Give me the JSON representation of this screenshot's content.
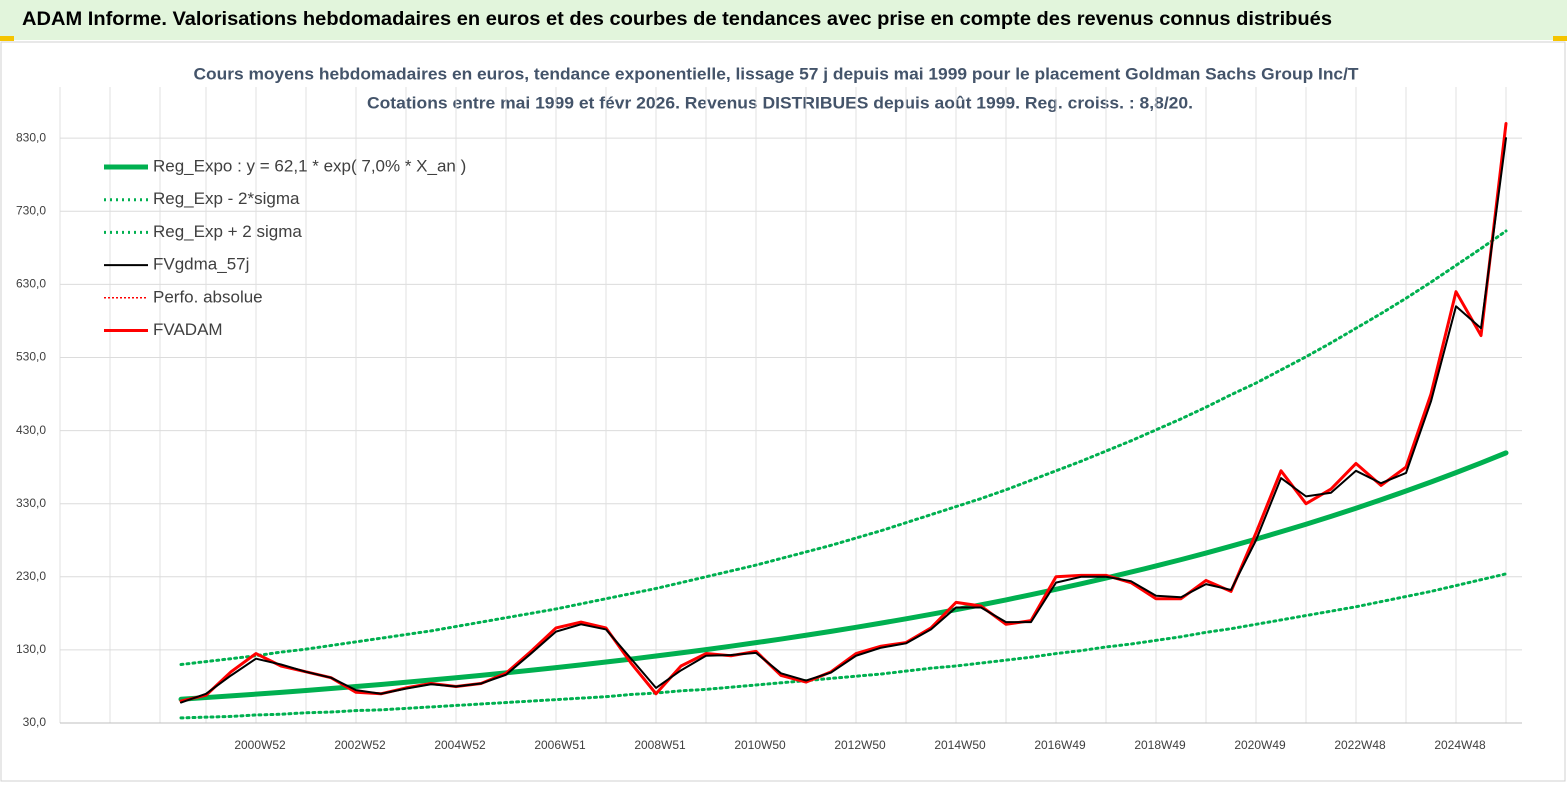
{
  "header": {
    "title": "ADAM Informe. Valorisations hebdomadaires en euros et des courbes de tendances avec prise en compte des revenus connus distribués"
  },
  "chart_data": {
    "type": "line",
    "title": "Cours moyens hebdomadaires en euros, tendance exponentielle, lissage 57 j depuis mai 1999 pour le placement Goldman Sachs Group Inc/T",
    "subtitle": "Cotations entre mai 1999 et févr 2026. Revenus DISTRIBUES depuis août 1999. Reg. croiss. : 8,8/20.",
    "categories": [
      null,
      null,
      null,
      "2000W52",
      null,
      null,
      null,
      "2002W52",
      null,
      null,
      null,
      "2004W52",
      null,
      null,
      null,
      "2006W51",
      null,
      null,
      null,
      "2008W51",
      null,
      null,
      null,
      "2010W50",
      null,
      null,
      null,
      "2012W50",
      null,
      null,
      null,
      "2014W50",
      null,
      null,
      null,
      "2016W49",
      null,
      null,
      null,
      "2018W49",
      null,
      null,
      null,
      "2020W49",
      null,
      null,
      null,
      "2022W48",
      null,
      null,
      null,
      "2024W48",
      null,
      null
    ],
    "series": [
      {
        "name": "Reg_Expo : y = 62,1 * exp( 7,0% *  X_an )",
        "color": "#00b050",
        "style": "solid",
        "values": [
          62.5,
          64.8,
          67.1,
          69.5,
          71.9,
          74.5,
          77.2,
          79.9,
          82.7,
          85.7,
          88.8,
          91.9,
          95.2,
          98.6,
          102.1,
          105.7,
          109.5,
          113.4,
          117.4,
          121.6,
          125.9,
          130.4,
          135.1,
          139.9,
          144.8,
          150.0,
          155.3,
          160.9,
          166.6,
          172.5,
          178.7,
          185.0,
          191.6,
          198.4,
          205.5,
          212.8,
          220.4,
          228.2,
          236.4,
          244.8,
          253.5,
          262.5,
          271.9,
          281.5,
          291.6,
          301.9,
          312.7,
          323.8,
          335.4,
          347.3,
          359.7,
          372.5,
          385.8,
          399.5
        ]
      },
      {
        "name": "Reg_Exp - 2*sigma",
        "color": "#00b050",
        "style": "dotted",
        "values": [
          37,
          38,
          39,
          41,
          42,
          44,
          45,
          47,
          48,
          50,
          52,
          54,
          56,
          58,
          60,
          62,
          64,
          66,
          69,
          71,
          74,
          76,
          79,
          82,
          85,
          88,
          91,
          94,
          97,
          101,
          105,
          108,
          112,
          116,
          120,
          125,
          129,
          134,
          138,
          143,
          148,
          154,
          159,
          165,
          171,
          177,
          183,
          189,
          196,
          203,
          210,
          218,
          226,
          234
        ]
      },
      {
        "name": "Reg_Exp + 2 sigma",
        "color": "#00b050",
        "style": "dotted",
        "values": [
          110,
          114,
          118,
          122,
          127,
          131,
          136,
          141,
          146,
          151,
          156,
          162,
          168,
          174,
          180,
          186,
          193,
          200,
          207,
          214,
          222,
          230,
          238,
          246,
          255,
          264,
          273,
          283,
          293,
          304,
          315,
          326,
          337,
          349,
          362,
          375,
          388,
          402,
          416,
          431,
          446,
          462,
          479,
          495,
          513,
          531,
          550,
          570,
          590,
          611,
          633,
          656,
          679,
          703
        ]
      },
      {
        "name": "FVgdma_57j",
        "color": "#000000",
        "style": "thin",
        "values": [
          58,
          70,
          95,
          118,
          110,
          100,
          92,
          75,
          70,
          77,
          83,
          80,
          84,
          96,
          125,
          155,
          165,
          158,
          118,
          78,
          102,
          122,
          123,
          126,
          98,
          88,
          99,
          122,
          133,
          139,
          158,
          188,
          188,
          168,
          168,
          222,
          230,
          230,
          224,
          204,
          202,
          220,
          212,
          280,
          365,
          340,
          345,
          375,
          358,
          372,
          470,
          600,
          570,
          830
        ]
      },
      {
        "name": "Perfo. absolue",
        "color": "#ff0000",
        "style": "dotted-thin",
        "values": [
          null,
          null,
          null,
          null,
          null,
          null,
          null,
          null,
          null,
          null,
          null,
          null,
          null,
          null,
          null,
          null,
          null,
          null,
          null,
          null,
          null,
          null,
          null,
          null,
          null,
          null,
          null,
          null,
          null,
          null,
          null,
          null,
          null,
          null,
          null,
          null,
          null,
          null,
          null,
          null,
          null,
          null,
          null,
          null,
          null,
          null,
          null,
          null,
          null,
          null,
          null,
          null,
          null,
          null
        ]
      },
      {
        "name": "FVADAM",
        "color": "#ff0000",
        "style": "thick",
        "values": [
          60,
          68,
          100,
          125,
          108,
          100,
          92,
          72,
          70,
          78,
          84,
          80,
          84,
          98,
          128,
          160,
          168,
          160,
          112,
          70,
          108,
          125,
          122,
          128,
          95,
          86,
          100,
          125,
          135,
          140,
          160,
          195,
          190,
          165,
          170,
          230,
          232,
          232,
          222,
          200,
          200,
          225,
          210,
          290,
          375,
          330,
          350,
          385,
          355,
          380,
          480,
          620,
          560,
          850
        ]
      }
    ],
    "ylim": [
      30,
      900
    ],
    "yticks": [
      {
        "value": 30,
        "label": "30,0"
      },
      {
        "value": 130,
        "label": "130,0"
      },
      {
        "value": 230,
        "label": "230,0"
      },
      {
        "value": 330,
        "label": "330,0"
      },
      {
        "value": 430,
        "label": "430,0"
      },
      {
        "value": 530,
        "label": "530,0"
      },
      {
        "value": 630,
        "label": "630,0"
      },
      {
        "value": 730,
        "label": "730,0"
      },
      {
        "value": 830,
        "label": "830,0"
      }
    ],
    "grid": true,
    "legend": "top-left"
  }
}
